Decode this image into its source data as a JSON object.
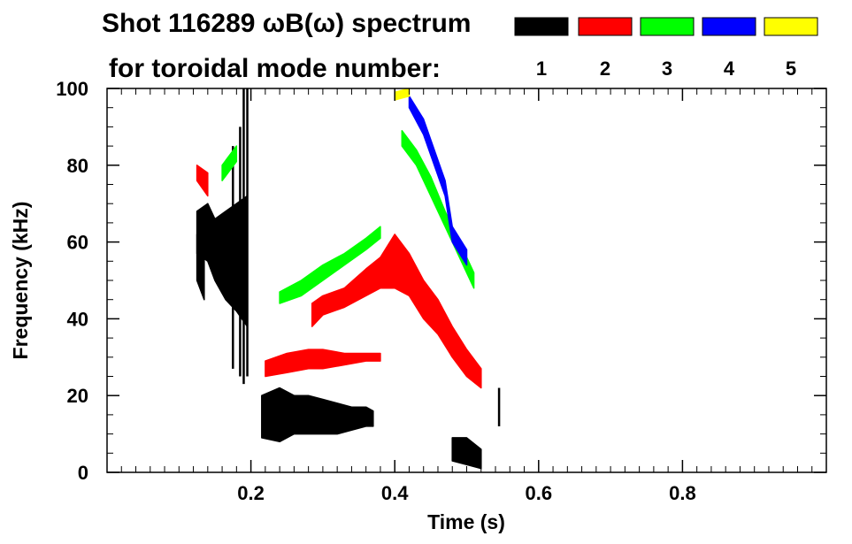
{
  "chart_data": {
    "type": "heatmap",
    "title_line1": "Shot 116289 ωB(ω) spectrum",
    "title_line2": "for toroidal mode number:",
    "xlabel": "Time (s)",
    "ylabel": "Frequency (kHz)",
    "xlim": [
      0.0,
      1.0
    ],
    "ylim": [
      0,
      100
    ],
    "x_ticks": [
      0.2,
      0.4,
      0.6,
      0.8
    ],
    "x_tick_labels": [
      "0.2",
      "0.4",
      "0.6",
      "0.8"
    ],
    "y_ticks": [
      0,
      20,
      40,
      60,
      80,
      100
    ],
    "y_tick_labels": [
      "0",
      "20",
      "40",
      "60",
      "80",
      "100"
    ],
    "legend_placement": "top-right",
    "legend": [
      {
        "mode": "1",
        "color": "#000000"
      },
      {
        "mode": "2",
        "color": "#ff0000"
      },
      {
        "mode": "3",
        "color": "#00ff00"
      },
      {
        "mode": "4",
        "color": "#0000ff"
      },
      {
        "mode": "5",
        "color": "#ffff00"
      }
    ],
    "series": [
      {
        "mode": 1,
        "color": "#000000",
        "shape": "band",
        "points": [
          [
            0.125,
            57,
            68
          ],
          [
            0.14,
            55,
            70
          ],
          [
            0.15,
            50,
            66
          ],
          [
            0.165,
            45,
            68
          ],
          [
            0.18,
            42,
            70
          ],
          [
            0.195,
            38,
            72
          ]
        ]
      },
      {
        "mode": 1,
        "color": "#000000",
        "shape": "band",
        "points": [
          [
            0.125,
            50,
            62
          ],
          [
            0.135,
            45,
            60
          ]
        ]
      },
      {
        "mode": 1,
        "color": "#000000",
        "shape": "vline",
        "points": [
          [
            0.175,
            27,
            85
          ],
          [
            0.185,
            25,
            90
          ],
          [
            0.19,
            23,
            100
          ],
          [
            0.195,
            25,
            100
          ]
        ]
      },
      {
        "mode": 1,
        "color": "#000000",
        "shape": "band",
        "points": [
          [
            0.215,
            9,
            20
          ],
          [
            0.24,
            8,
            22
          ],
          [
            0.26,
            10,
            20
          ],
          [
            0.28,
            10,
            20
          ],
          [
            0.3,
            10,
            19
          ],
          [
            0.32,
            10,
            18
          ],
          [
            0.34,
            11,
            17
          ],
          [
            0.36,
            12,
            17
          ],
          [
            0.37,
            12,
            16
          ]
        ]
      },
      {
        "mode": 1,
        "color": "#000000",
        "shape": "band",
        "points": [
          [
            0.48,
            3,
            9
          ],
          [
            0.5,
            2,
            9
          ],
          [
            0.52,
            1,
            6
          ]
        ]
      },
      {
        "mode": 1,
        "color": "#000000",
        "shape": "vline",
        "points": [
          [
            0.545,
            12,
            22
          ]
        ]
      },
      {
        "mode": 2,
        "color": "#ff0000",
        "shape": "band",
        "points": [
          [
            0.22,
            25,
            29
          ],
          [
            0.25,
            26,
            31
          ],
          [
            0.28,
            27,
            32
          ],
          [
            0.3,
            27,
            32
          ],
          [
            0.33,
            28,
            31
          ],
          [
            0.36,
            29,
            31
          ],
          [
            0.38,
            29,
            31
          ]
        ]
      },
      {
        "mode": 2,
        "color": "#ff0000",
        "shape": "band",
        "points": [
          [
            0.285,
            38,
            44
          ],
          [
            0.3,
            41,
            46
          ],
          [
            0.33,
            43,
            48
          ],
          [
            0.36,
            46,
            53
          ],
          [
            0.38,
            48,
            56
          ],
          [
            0.4,
            48,
            62
          ],
          [
            0.42,
            46,
            57
          ],
          [
            0.44,
            40,
            50
          ],
          [
            0.46,
            36,
            45
          ],
          [
            0.48,
            30,
            38
          ],
          [
            0.5,
            25,
            32
          ],
          [
            0.52,
            22,
            27
          ]
        ]
      },
      {
        "mode": 2,
        "color": "#ff0000",
        "shape": "band",
        "points": [
          [
            0.125,
            76,
            80
          ],
          [
            0.14,
            72,
            78
          ]
        ]
      },
      {
        "mode": 3,
        "color": "#00ff00",
        "shape": "band",
        "points": [
          [
            0.24,
            44,
            47
          ],
          [
            0.27,
            46,
            50
          ],
          [
            0.3,
            50,
            54
          ],
          [
            0.33,
            54,
            57
          ],
          [
            0.36,
            58,
            61
          ],
          [
            0.38,
            61,
            64
          ]
        ]
      },
      {
        "mode": 3,
        "color": "#00ff00",
        "shape": "band",
        "points": [
          [
            0.41,
            85,
            89
          ],
          [
            0.43,
            80,
            84
          ],
          [
            0.45,
            72,
            77
          ],
          [
            0.47,
            64,
            68
          ],
          [
            0.49,
            56,
            60
          ],
          [
            0.51,
            48,
            52
          ]
        ]
      },
      {
        "mode": 3,
        "color": "#00ff00",
        "shape": "band",
        "points": [
          [
            0.16,
            76,
            80
          ],
          [
            0.18,
            81,
            85
          ]
        ]
      },
      {
        "mode": 4,
        "color": "#0000ff",
        "shape": "band",
        "points": [
          [
            0.42,
            95,
            98
          ],
          [
            0.44,
            88,
            92
          ],
          [
            0.47,
            72,
            76
          ],
          [
            0.48,
            60,
            64
          ],
          [
            0.5,
            54,
            58
          ]
        ]
      },
      {
        "mode": 5,
        "color": "#ffff00",
        "shape": "band",
        "points": [
          [
            0.4,
            97,
            99
          ],
          [
            0.42,
            98,
            100
          ]
        ]
      }
    ]
  }
}
